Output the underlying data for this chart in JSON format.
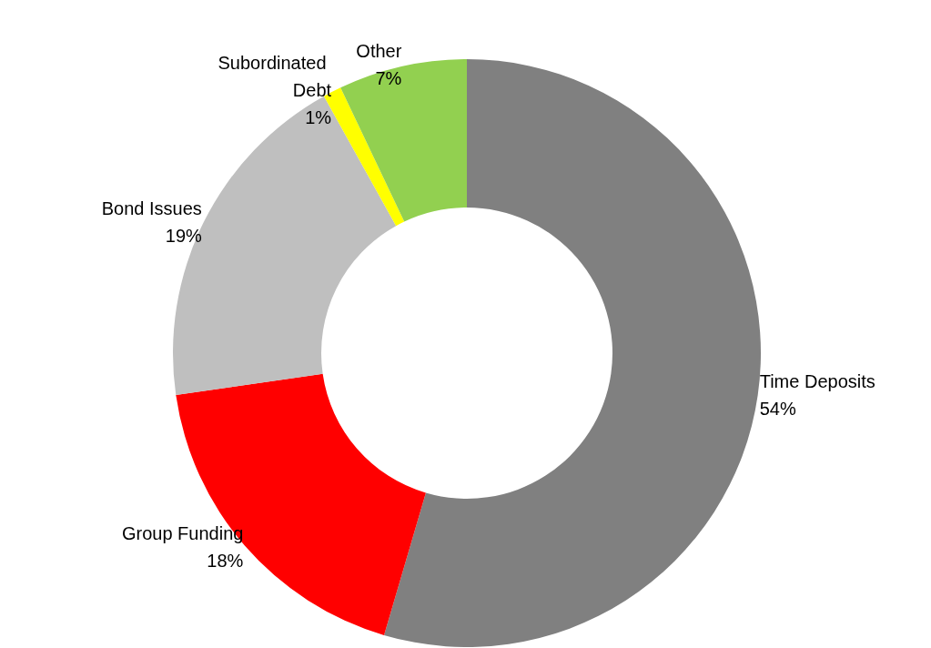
{
  "chart_data": {
    "type": "donut",
    "categories": [
      "Time Deposits",
      "Group Funding",
      "Bond Issues",
      "Subordinated Debt",
      "Other"
    ],
    "values": [
      54,
      18,
      19,
      1,
      7
    ],
    "value_labels": [
      "54%",
      "18%",
      "19%",
      "1%",
      "7%"
    ],
    "colors": [
      "#808080",
      "#ff0000",
      "#bfbfbf",
      "#ffff00",
      "#92d050"
    ],
    "legend": false
  }
}
